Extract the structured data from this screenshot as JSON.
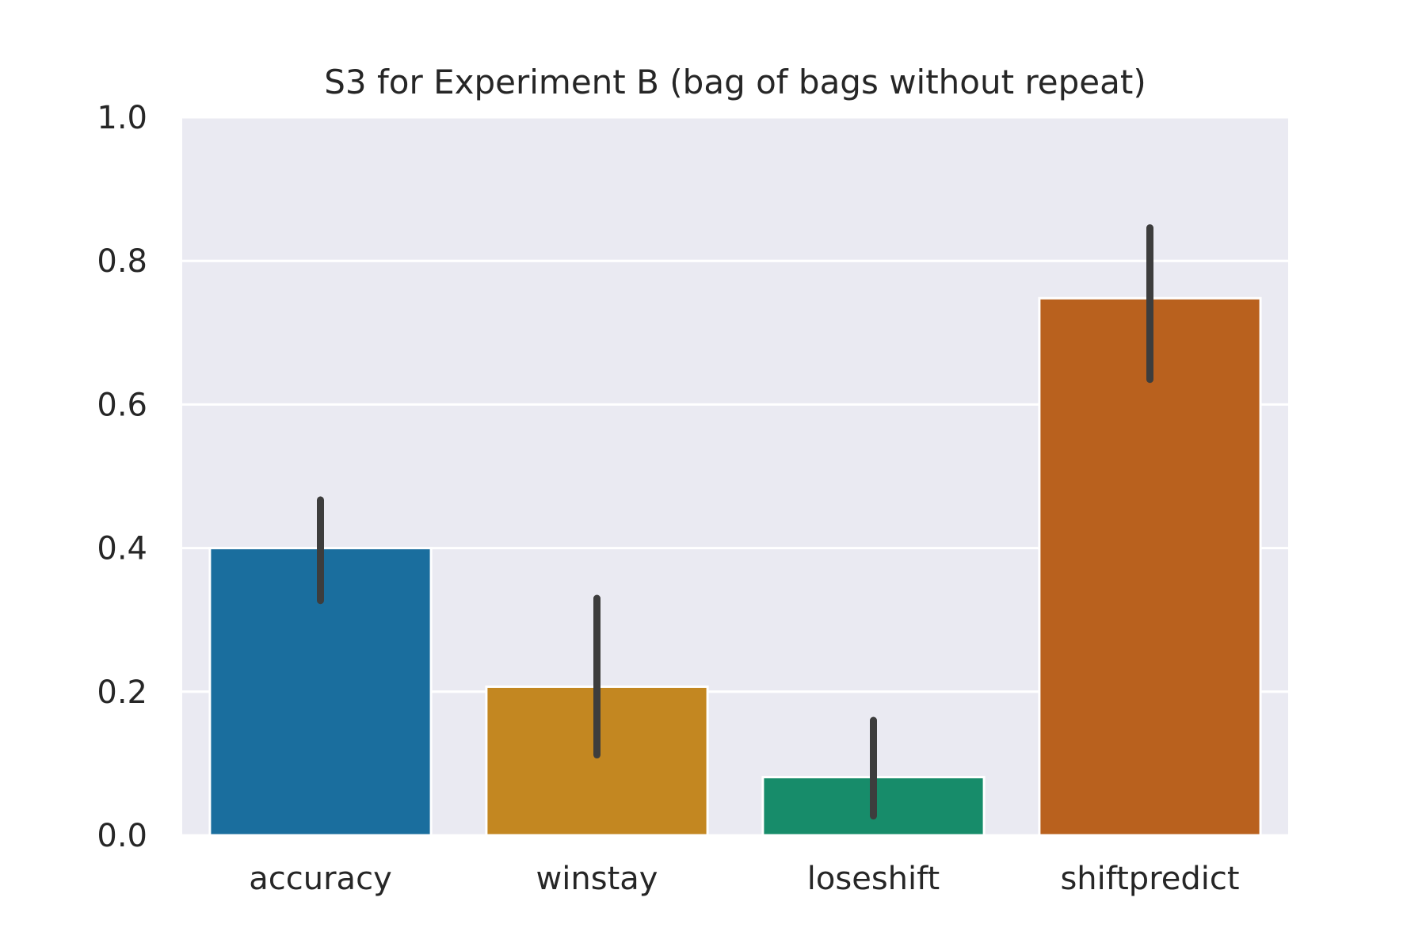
{
  "chart_data": {
    "type": "bar",
    "title": "S3 for Experiment B (bag of bags without repeat)",
    "xlabel": "",
    "ylabel": "",
    "categories": [
      "accuracy",
      "winstay",
      "loseshift",
      "shiftpredict"
    ],
    "values": [
      0.4,
      0.207,
      0.081,
      0.748
    ],
    "error_bars": [
      {
        "low": 0.327,
        "high": 0.467
      },
      {
        "low": 0.112,
        "high": 0.33
      },
      {
        "low": 0.027,
        "high": 0.16
      },
      {
        "low": 0.635,
        "high": 0.846
      }
    ],
    "ylim": [
      0,
      1.0
    ],
    "yticks": [
      "0.0",
      "0.2",
      "0.4",
      "0.6",
      "0.8",
      "1.0"
    ],
    "grid": true,
    "legend": "none",
    "colors": {
      "background": "#eaeaf2",
      "grid": "#ffffff",
      "bars": [
        "#1a6e9e",
        "#c38721",
        "#178c6a",
        "#b9611e"
      ],
      "error_bar": "#3d3d3d",
      "text": "#262626"
    }
  }
}
